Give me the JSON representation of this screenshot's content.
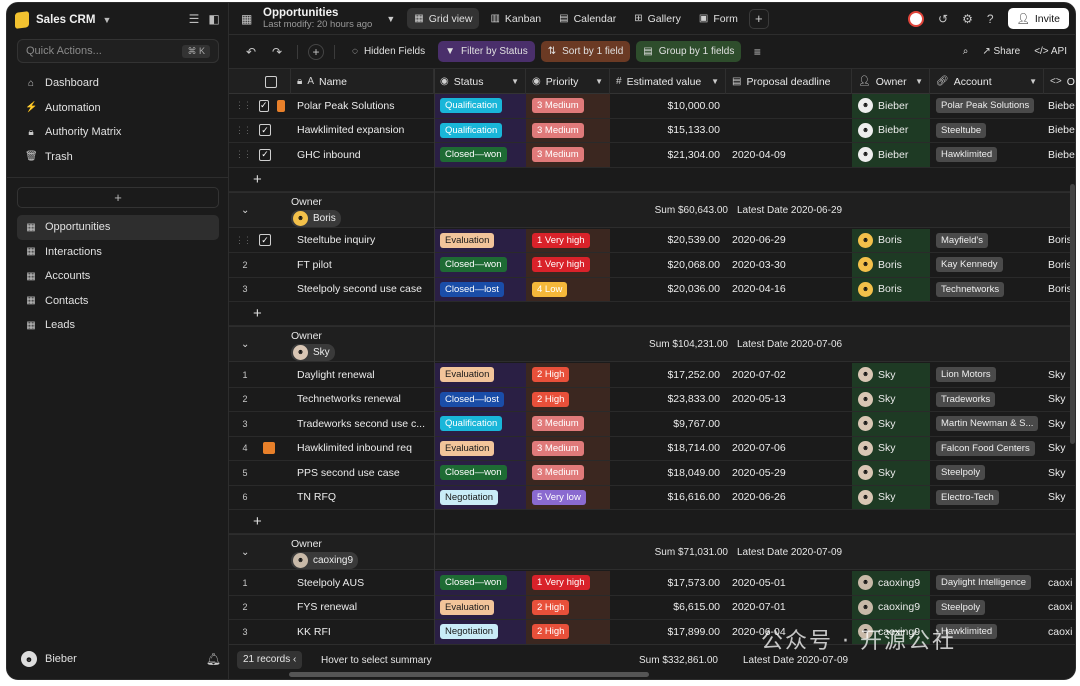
{
  "workspace": {
    "name": "Sales CRM"
  },
  "sidebar": {
    "quick_actions_placeholder": "Quick Actions...",
    "quick_actions_shortcut": "⌘ K",
    "nav": [
      {
        "label": "Dashboard",
        "icon": "home-icon"
      },
      {
        "label": "Automation",
        "icon": "automation-icon"
      },
      {
        "label": "Authority Matrix",
        "icon": "lock-icon"
      },
      {
        "label": "Trash",
        "icon": "trash-icon"
      }
    ],
    "add_label": "+",
    "tables": [
      {
        "label": "Opportunities",
        "active": true
      },
      {
        "label": "Interactions",
        "active": false
      },
      {
        "label": "Accounts",
        "active": false
      },
      {
        "label": "Contacts",
        "active": false
      },
      {
        "label": "Leads",
        "active": false
      }
    ],
    "user": "Bieber"
  },
  "header": {
    "title": "Opportunities",
    "subtitle": "Last modify: 20 hours ago",
    "views": [
      {
        "label": "Grid view",
        "icon": "grid-icon",
        "active": true
      },
      {
        "label": "Kanban",
        "icon": "kanban-icon",
        "active": false
      },
      {
        "label": "Calendar",
        "icon": "calendar-icon",
        "active": false
      },
      {
        "label": "Gallery",
        "icon": "gallery-icon",
        "active": false
      },
      {
        "label": "Form",
        "icon": "form-icon",
        "active": false
      }
    ],
    "invite_label": "Invite"
  },
  "toolbar": {
    "hidden_fields": "Hidden Fields",
    "filter": "Filter by Status",
    "sort": "Sort by 1 field",
    "group": "Group by 1 fields",
    "share": "Share",
    "api": "API"
  },
  "columns": [
    "Name",
    "Status",
    "Priority",
    "Estimated value",
    "Proposal deadline",
    "Owner",
    "Account",
    "O"
  ],
  "colors": {
    "Qualification": "#19b6d9",
    "Closed—won": "#1e6b34",
    "Closed—lost": "#1a4da8",
    "Evaluation": "#f2c49a",
    "Negotiation": "#c9ecf7",
    "1 Very high": "#d9222a",
    "2 High": "#e8503a",
    "3 Medium": "#e07a7a",
    "4 Low": "#f5b83a",
    "5 Very low": "#8a6ad0"
  },
  "top_rows": [
    {
      "name": "Polar Peak Solutions",
      "status": "Qualification",
      "priority": "3 Medium",
      "value": "$10,000.00",
      "deadline": "",
      "owner": "Bieber",
      "account": "Polar Peak Solutions",
      "extra": "Biebe",
      "flag": true
    },
    {
      "name": "Hawklimited expansion",
      "status": "Qualification",
      "priority": "3 Medium",
      "value": "$15,133.00",
      "deadline": "",
      "owner": "Bieber",
      "account": "Steeltube",
      "extra": "Biebe",
      "flag": false
    },
    {
      "name": "GHC inbound",
      "status": "Closed—won",
      "priority": "3 Medium",
      "value": "$21,304.00",
      "deadline": "2020-04-09",
      "owner": "Bieber",
      "account": "Hawklimited",
      "extra": "Biebe",
      "flag": false
    }
  ],
  "groups": [
    {
      "label": "Owner",
      "owner": "Boris",
      "sum": "Sum $60,643.00",
      "date": "Latest Date 2020-06-29",
      "rows": [
        {
          "num": "",
          "name": "Steeltube inquiry",
          "status": "Evaluation",
          "priority": "1 Very high",
          "value": "$20,539.00",
          "deadline": "2020-06-29",
          "owner": "Boris",
          "account": "Mayfield's",
          "extra": "Boris",
          "check": true
        },
        {
          "num": "2",
          "name": "FT pilot",
          "status": "Closed—won",
          "priority": "1 Very high",
          "value": "$20,068.00",
          "deadline": "2020-03-30",
          "owner": "Boris",
          "account": "Kay Kennedy",
          "extra": "Boris"
        },
        {
          "num": "3",
          "name": "Steelpoly second use case",
          "status": "Closed—lost",
          "priority": "4 Low",
          "value": "$20,036.00",
          "deadline": "2020-04-16",
          "owner": "Boris",
          "account": "Technetworks",
          "extra": "Boris"
        }
      ]
    },
    {
      "label": "Owner",
      "owner": "Sky",
      "sum": "Sum $104,231.00",
      "date": "Latest Date 2020-07-06",
      "rows": [
        {
          "num": "1",
          "name": "Daylight renewal",
          "status": "Evaluation",
          "priority": "2 High",
          "value": "$17,252.00",
          "deadline": "2020-07-02",
          "owner": "Sky",
          "account": "Lion Motors",
          "extra": "Sky"
        },
        {
          "num": "2",
          "name": "Technetworks renewal",
          "status": "Closed—lost",
          "priority": "2 High",
          "value": "$23,833.00",
          "deadline": "2020-05-13",
          "owner": "Sky",
          "account": "Tradeworks",
          "extra": "Sky"
        },
        {
          "num": "3",
          "name": "Tradeworks second use c...",
          "status": "Qualification",
          "priority": "3 Medium",
          "value": "$9,767.00",
          "deadline": "",
          "owner": "Sky",
          "account": "Martin Newman & S...",
          "extra": "Sky"
        },
        {
          "num": "4",
          "name": "Hawklimited inbound req",
          "status": "Evaluation",
          "priority": "3 Medium",
          "value": "$18,714.00",
          "deadline": "2020-07-06",
          "owner": "Sky",
          "account": "Falcon Food Centers",
          "extra": "Sky",
          "flag": true
        },
        {
          "num": "5",
          "name": "PPS second use case",
          "status": "Closed—won",
          "priority": "3 Medium",
          "value": "$18,049.00",
          "deadline": "2020-05-29",
          "owner": "Sky",
          "account": "Steelpoly",
          "extra": "Sky"
        },
        {
          "num": "6",
          "name": "TN RFQ",
          "status": "Negotiation",
          "priority": "5 Very low",
          "value": "$16,616.00",
          "deadline": "2020-06-26",
          "owner": "Sky",
          "account": "Electro-Tech",
          "extra": "Sky"
        }
      ]
    },
    {
      "label": "Owner",
      "owner": "caoxing9",
      "sum": "Sum $71,031.00",
      "date": "Latest Date 2020-07-09",
      "rows": [
        {
          "num": "1",
          "name": "Steelpoly AUS",
          "status": "Closed—won",
          "priority": "1 Very high",
          "value": "$17,573.00",
          "deadline": "2020-05-01",
          "owner": "caoxing9",
          "account": "Daylight Intelligence",
          "extra": "caoxi"
        },
        {
          "num": "2",
          "name": "FYS renewal",
          "status": "Evaluation",
          "priority": "2 High",
          "value": "$6,615.00",
          "deadline": "2020-07-01",
          "owner": "caoxing9",
          "account": "Steelpoly",
          "extra": "caoxi"
        },
        {
          "num": "3",
          "name": "KK RFI",
          "status": "Negotiation",
          "priority": "2 High",
          "value": "$17,899.00",
          "deadline": "2020-06-04",
          "owner": "caoxing9",
          "account": "Hawklimited",
          "extra": "caoxi"
        }
      ]
    }
  ],
  "footer": {
    "records": "21 records",
    "hover": "Hover to select summary",
    "sum": "Sum $332,861.00",
    "date": "Latest Date 2020-07-09"
  },
  "watermark": "公众号 · 开源公社"
}
